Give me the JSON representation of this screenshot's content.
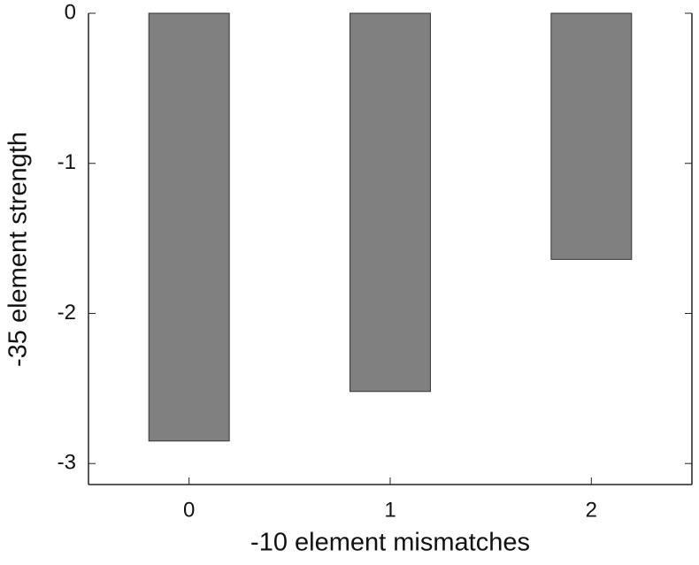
{
  "chart_data": {
    "type": "bar",
    "x_label": "-10 element mismatches",
    "y_label": "-35 element strength",
    "categories": [
      "0",
      "1",
      "2"
    ],
    "values": [
      -2.85,
      -2.52,
      -1.64
    ],
    "color": "#808080",
    "ylim": [
      -3.14,
      0
    ],
    "yticks": [
      -3,
      -2,
      -1,
      0
    ]
  }
}
